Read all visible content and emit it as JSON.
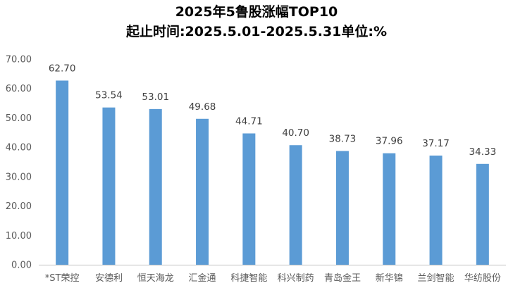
{
  "chart_data": {
    "type": "bar",
    "title": "2025年5鲁股涨幅TOP10",
    "subtitle": "起止时间:2025.5.01-2025.5.31单位:%",
    "categories": [
      "*ST荣控",
      "安德利",
      "恒天海龙",
      "汇金通",
      "科捷智能",
      "科兴制药",
      "青岛金王",
      "新华锦",
      "兰剑智能",
      "华纺股份"
    ],
    "values": [
      62.7,
      53.54,
      53.01,
      49.68,
      44.71,
      40.7,
      38.73,
      37.96,
      37.17,
      34.33
    ],
    "data_labels": [
      "62.70",
      "53.54",
      "53.01",
      "49.68",
      "44.71",
      "40.70",
      "38.73",
      "37.96",
      "37.17",
      "34.33"
    ],
    "y_ticks": [
      "0.00",
      "10.00",
      "20.00",
      "30.00",
      "40.00",
      "50.00",
      "60.00",
      "70.00"
    ],
    "ylim": [
      0,
      70
    ],
    "xlabel": "",
    "ylabel": "",
    "grid": false,
    "legend": "none",
    "bar_color": "#5B9BD5",
    "axis_color": "#BFBFBF"
  }
}
